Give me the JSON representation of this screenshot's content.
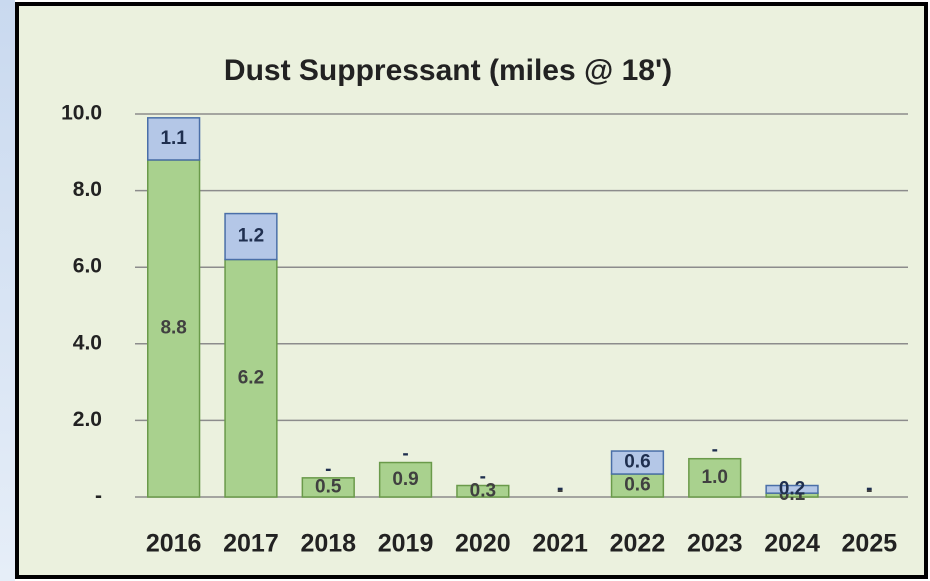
{
  "chart_data": {
    "type": "stacked_bar",
    "title": "Dust Suppressant (miles @ 18')",
    "categories": [
      "2016",
      "2017",
      "2018",
      "2019",
      "2020",
      "2021",
      "2022",
      "2023",
      "2024",
      "2025"
    ],
    "series": [
      {
        "color": "#a9d18e",
        "values": [
          8.8,
          6.2,
          0.5,
          0.9,
          0.3,
          0,
          0.6,
          1.0,
          0.1,
          0
        ],
        "value_labels": [
          "8.8",
          "6.2",
          "0.5",
          "0.9",
          "0.3",
          "-",
          "0.6",
          "1.0",
          "0.1",
          "-"
        ]
      },
      {
        "color": "#b4c7e7",
        "values": [
          1.1,
          1.2,
          0,
          0,
          0,
          0,
          0.6,
          0,
          0.2,
          0
        ],
        "value_labels": [
          "1.1",
          "1.2",
          "-",
          "-",
          "-",
          "-",
          "0.6",
          "-",
          "0.2",
          "-"
        ]
      }
    ],
    "ylim": [
      0,
      10
    ],
    "yticks": [
      {
        "value": 0,
        "label": "-"
      },
      {
        "value": 2,
        "label": "2.0"
      },
      {
        "value": 4,
        "label": "4.0"
      },
      {
        "value": 6,
        "label": "6.0"
      },
      {
        "value": 8,
        "label": "8.0"
      },
      {
        "value": 10,
        "label": "10.0"
      }
    ],
    "grid": true
  }
}
